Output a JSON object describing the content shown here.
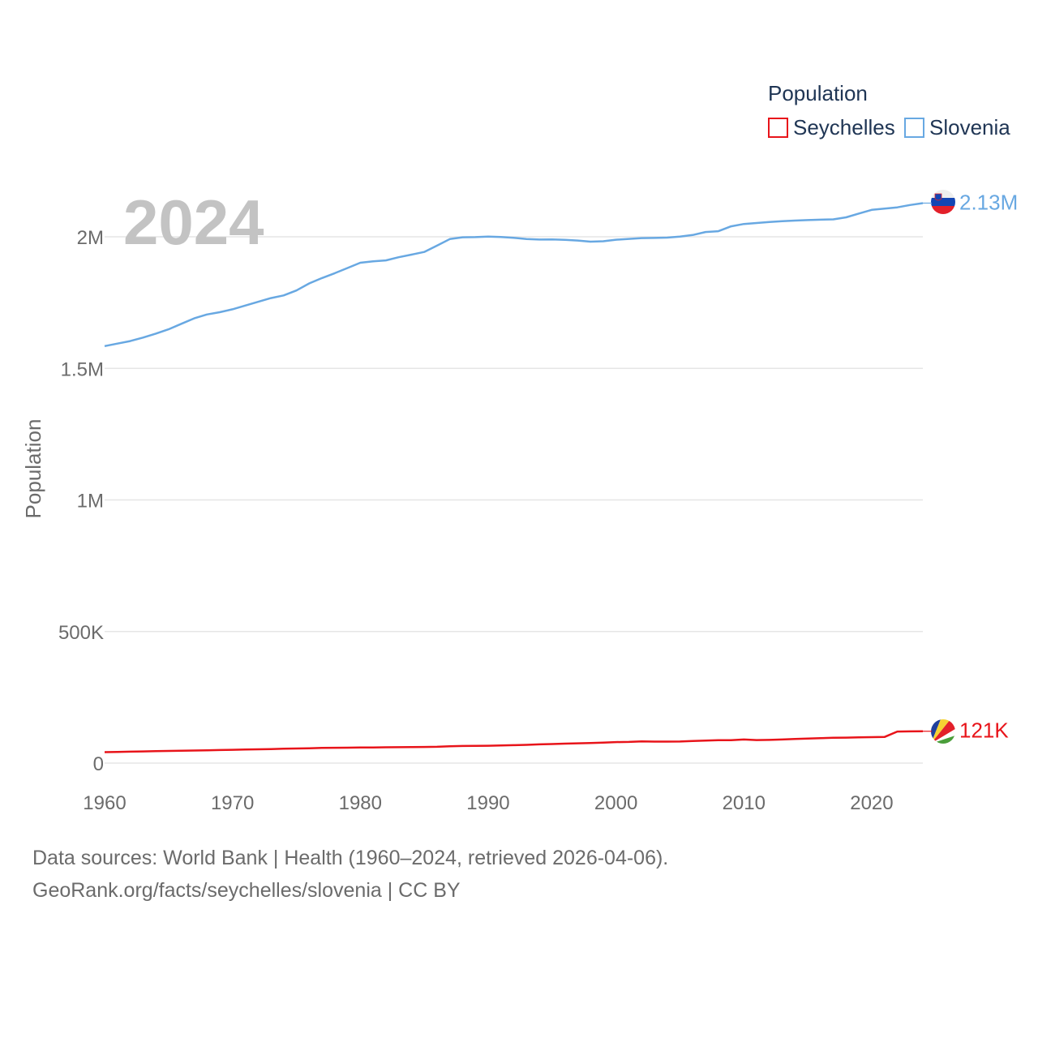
{
  "chart_data": {
    "type": "line",
    "year_label": "2024",
    "ylabel": "Population",
    "xlim": [
      1960,
      2024
    ],
    "ylim": [
      0,
      2200000
    ],
    "x_ticks": [
      1960,
      1970,
      1980,
      1990,
      2000,
      2010,
      2020
    ],
    "y_ticks": [
      {
        "value": 0,
        "label": "0"
      },
      {
        "value": 500000,
        "label": "500K"
      },
      {
        "value": 1000000,
        "label": "1M"
      },
      {
        "value": 1500000,
        "label": "1.5M"
      },
      {
        "value": 2000000,
        "label": "2M"
      }
    ],
    "legend": {
      "title": "Population",
      "position": "top-right"
    },
    "x": [
      1960,
      1961,
      1962,
      1963,
      1964,
      1965,
      1966,
      1967,
      1968,
      1969,
      1970,
      1971,
      1972,
      1973,
      1974,
      1975,
      1976,
      1977,
      1978,
      1979,
      1980,
      1981,
      1982,
      1983,
      1984,
      1985,
      1986,
      1987,
      1988,
      1989,
      1990,
      1991,
      1992,
      1993,
      1994,
      1995,
      1996,
      1997,
      1998,
      1999,
      2000,
      2001,
      2002,
      2003,
      2004,
      2005,
      2006,
      2007,
      2008,
      2009,
      2010,
      2011,
      2012,
      2013,
      2014,
      2015,
      2016,
      2017,
      2018,
      2019,
      2020,
      2021,
      2022,
      2023,
      2024
    ],
    "series": [
      {
        "name": "Seychelles",
        "color": "#e8141a",
        "end_label": "121K",
        "values": [
          41700,
          42600,
          43400,
          44300,
          45200,
          46100,
          47000,
          47900,
          48800,
          49700,
          50600,
          51600,
          52500,
          53400,
          54400,
          55400,
          56400,
          57500,
          58100,
          58600,
          59100,
          59600,
          60000,
          60500,
          61000,
          61400,
          61800,
          64200,
          65000,
          65500,
          66100,
          67000,
          68100,
          69400,
          71200,
          72400,
          73900,
          75300,
          76300,
          78000,
          79900,
          80400,
          82300,
          81600,
          81800,
          82000,
          84000,
          85400,
          87000,
          87300,
          89800,
          87400,
          88200,
          89800,
          91400,
          93400,
          94700,
          96000,
          96800,
          97600,
          98500,
          99300,
          119900,
          120500,
          121000
        ]
      },
      {
        "name": "Slovenia",
        "color": "#68a8e2",
        "end_label": "2.13M",
        "values": [
          1584720,
          1594131,
          1603649,
          1616971,
          1632114,
          1648344,
          1669364,
          1689880,
          1704913,
          1713416,
          1724488,
          1738770,
          1752807,
          1766993,
          1777213,
          1796106,
          1822723,
          1842999,
          1861584,
          1881457,
          1901315,
          1906531,
          1910334,
          1922321,
          1932154,
          1942320,
          1966360,
          1991380,
          1998090,
          1998640,
          2000900,
          1999350,
          1996360,
          1991420,
          1989480,
          1989880,
          1988630,
          1985960,
          1981630,
          1983040,
          1988930,
          1992060,
          1995030,
          1995730,
          1997010,
          2000470,
          2006870,
          2018120,
          2021320,
          2039670,
          2048580,
          2052500,
          2056260,
          2059120,
          2061620,
          2063530,
          2064920,
          2066160,
          2073890,
          2088390,
          2102420,
          2107010,
          2111990,
          2120940,
          2128000
        ]
      }
    ]
  },
  "footer": {
    "line1": "Data sources: World Bank | Health (1960–2024, retrieved 2026-04-06).",
    "line2": "GeoRank.org/facts/seychelles/slovenia | CC BY"
  }
}
